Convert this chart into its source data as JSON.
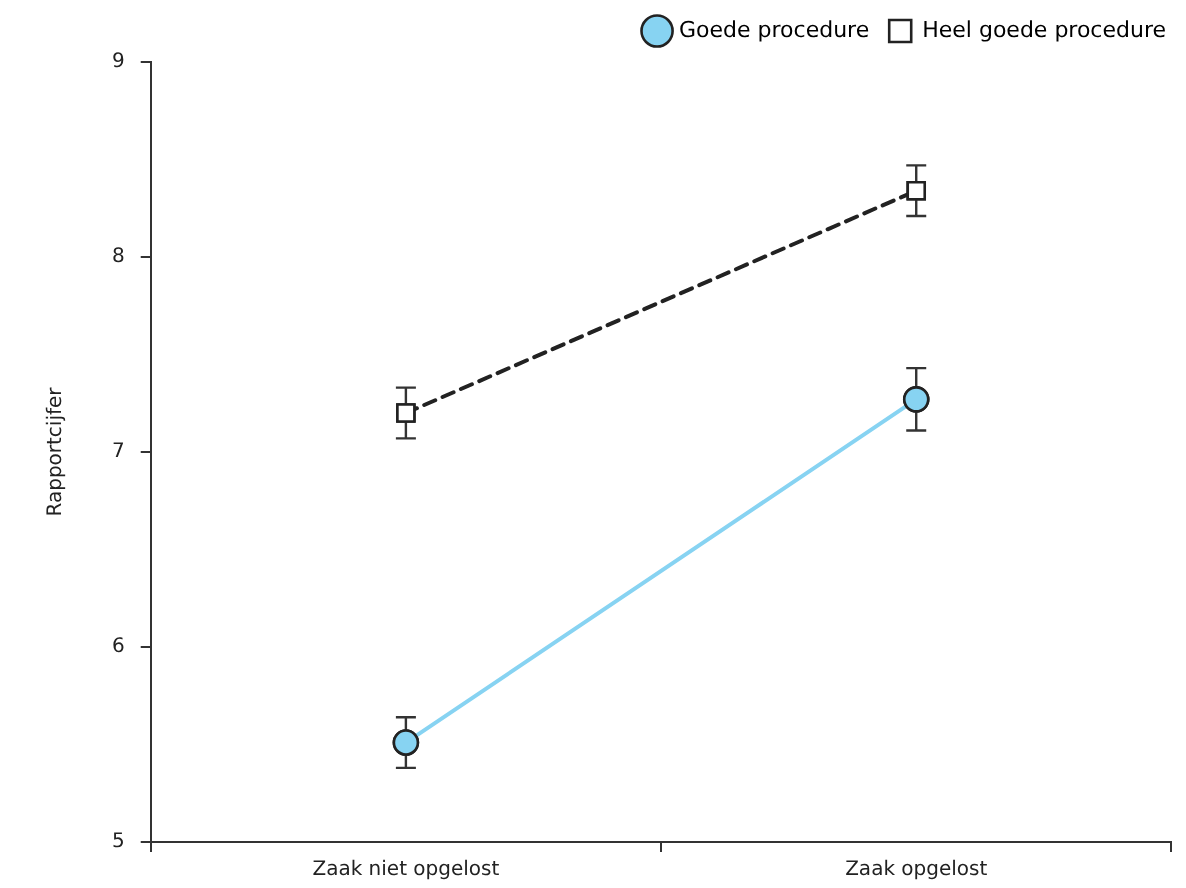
{
  "chart_data": {
    "type": "line",
    "ylabel": "Rapportcijfer",
    "categories": [
      "Zaak niet opgelost",
      "Zaak opgelost"
    ],
    "series": [
      {
        "name": "Goede procedure",
        "color": "#87d3f2",
        "values": [
          5.51,
          7.27
        ],
        "errors": [
          0.13,
          0.16
        ],
        "marker": "circle",
        "line_style": "solid"
      },
      {
        "name": "Heel goede procedure",
        "color": "#222222",
        "values": [
          7.2,
          8.34
        ],
        "errors": [
          0.13,
          0.13
        ],
        "marker": "square",
        "line_style": "dashed"
      }
    ],
    "ylim": [
      5,
      9
    ],
    "yticks": [
      5,
      6,
      7,
      8,
      9
    ],
    "grid": false,
    "legend": "top right"
  }
}
